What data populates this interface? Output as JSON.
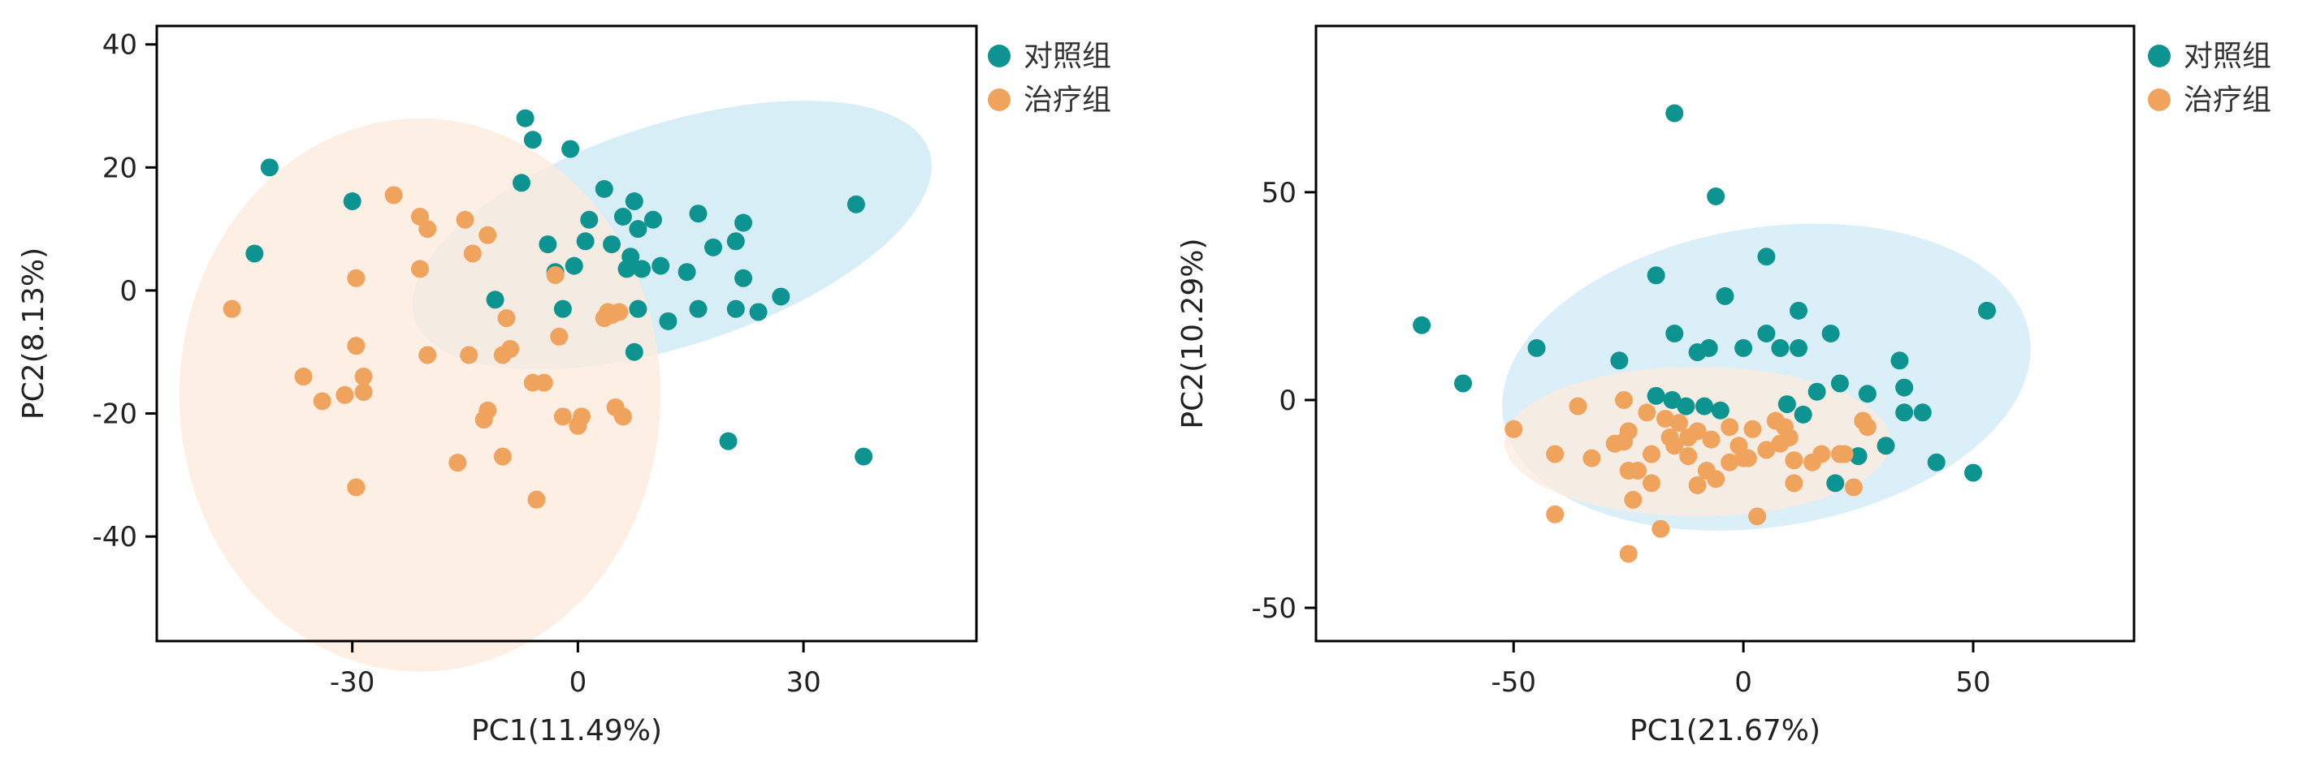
{
  "chart_data": [
    {
      "type": "scatter",
      "title": "",
      "xlabel": "PC1(11.49%)",
      "ylabel": "PC2(8.13%)",
      "xlim": [
        -56,
        53
      ],
      "ylim": [
        -57,
        43
      ],
      "xticks": [
        -30,
        0,
        30
      ],
      "xtick_labels": [
        "-30",
        "0",
        "30"
      ],
      "yticks": [
        40,
        20,
        0,
        -20,
        -40
      ],
      "ytick_labels": [
        "40",
        "20",
        "0",
        "-20",
        "-40"
      ],
      "grid": false,
      "legend_position": "top-right outside",
      "series": [
        {
          "name": "对照组",
          "color": "#0e9490",
          "ellipse": {
            "cx": 12.5,
            "cy": 9,
            "rx": 36,
            "ry": 18,
            "angle_deg": 18,
            "fill": "#cbe8f4"
          },
          "points": [
            [
              -7,
              28
            ],
            [
              -6,
              24.5
            ],
            [
              -41,
              20
            ],
            [
              -30,
              14.5
            ],
            [
              -43,
              6
            ],
            [
              -7.5,
              17.5
            ],
            [
              -1,
              23
            ],
            [
              3.5,
              16.5
            ],
            [
              7.5,
              14.5
            ],
            [
              6,
              12
            ],
            [
              1.5,
              11.5
            ],
            [
              10,
              11.5
            ],
            [
              16,
              12.5
            ],
            [
              22,
              11
            ],
            [
              8,
              10
            ],
            [
              1,
              8
            ],
            [
              -4,
              7.5
            ],
            [
              4.5,
              7.5
            ],
            [
              7,
              5.5
            ],
            [
              8.5,
              3.5
            ],
            [
              6.5,
              3.5
            ],
            [
              11,
              4
            ],
            [
              14.5,
              3
            ],
            [
              18,
              7
            ],
            [
              21,
              8
            ],
            [
              22,
              2
            ],
            [
              -3,
              3
            ],
            [
              -0.5,
              4
            ],
            [
              -11,
              -1.5
            ],
            [
              -2,
              -3
            ],
            [
              8,
              -3
            ],
            [
              16,
              -3
            ],
            [
              21,
              -3
            ],
            [
              24,
              -3.5
            ],
            [
              27,
              -1
            ],
            [
              12,
              -5
            ],
            [
              7.5,
              -10
            ],
            [
              20,
              -24.5
            ],
            [
              37,
              14
            ],
            [
              38,
              -27
            ]
          ]
        },
        {
          "name": "治疗组",
          "color": "#f0a35c",
          "ellipse": {
            "cx": -21,
            "cy": -17,
            "rx": 32,
            "ry": 45,
            "angle_deg": 0,
            "fill": "#fdeadc"
          },
          "points": [
            [
              -46,
              -3
            ],
            [
              -29.5,
              2
            ],
            [
              -24.5,
              15.5
            ],
            [
              -21,
              12
            ],
            [
              -20,
              10
            ],
            [
              -15,
              11.5
            ],
            [
              -12,
              9
            ],
            [
              -14,
              6
            ],
            [
              -21,
              3.5
            ],
            [
              -9,
              -9.5
            ],
            [
              -9.5,
              -4.5
            ],
            [
              -3,
              2.5
            ],
            [
              -2.5,
              -7.5
            ],
            [
              3.5,
              -4.5
            ],
            [
              4.5,
              -4
            ],
            [
              4,
              -3.5
            ],
            [
              5.5,
              -3.5
            ],
            [
              -29.5,
              -9
            ],
            [
              -36.5,
              -14
            ],
            [
              -28.5,
              -14
            ],
            [
              -28.5,
              -16.5
            ],
            [
              -31,
              -17
            ],
            [
              -34,
              -18
            ],
            [
              -20,
              -10.5
            ],
            [
              -14.5,
              -10.5
            ],
            [
              -10,
              -10.5
            ],
            [
              -6,
              -15
            ],
            [
              -4.5,
              -15
            ],
            [
              -12,
              -19.5
            ],
            [
              -12.5,
              -21
            ],
            [
              -2,
              -20.5
            ],
            [
              0,
              -22
            ],
            [
              0.5,
              -20.5
            ],
            [
              5,
              -19
            ],
            [
              6,
              -20.5
            ],
            [
              -16,
              -28
            ],
            [
              -10,
              -27
            ],
            [
              -29.5,
              -32
            ],
            [
              -5.5,
              -34
            ]
          ]
        }
      ]
    },
    {
      "type": "scatter",
      "title": "",
      "xlabel": "PC1(21.67%)",
      "ylabel": "PC2(10.29%)",
      "xlim": [
        -93,
        85
      ],
      "ylim": [
        -58,
        90
      ],
      "xticks": [
        -50,
        0,
        50
      ],
      "xtick_labels": [
        "-50",
        "0",
        "50"
      ],
      "yticks": [
        50,
        0,
        -50
      ],
      "ytick_labels": [
        "50",
        "0",
        "-50"
      ],
      "grid": false,
      "legend_position": "top-right outside",
      "series": [
        {
          "name": "对照组",
          "color": "#0e9490",
          "ellipse": {
            "cx": 5,
            "cy": 5.5,
            "rx": 58,
            "ry": 36,
            "angle_deg": 9,
            "fill": "#cfe9f5"
          },
          "points": [
            [
              -70,
              18
            ],
            [
              -61,
              4
            ],
            [
              -45,
              12.5
            ],
            [
              -15,
              69
            ],
            [
              -6,
              49
            ],
            [
              -19,
              30
            ],
            [
              -4,
              25
            ],
            [
              5,
              34.5
            ],
            [
              12,
              21.5
            ],
            [
              -15,
              16
            ],
            [
              -10,
              11.5
            ],
            [
              -7.5,
              12.5
            ],
            [
              0,
              12.5
            ],
            [
              5,
              16
            ],
            [
              8,
              12.5
            ],
            [
              12,
              12.5
            ],
            [
              19,
              16
            ],
            [
              -27,
              9.5
            ],
            [
              -15.5,
              0
            ],
            [
              -19,
              1
            ],
            [
              -12.5,
              -1.5
            ],
            [
              -8.5,
              -1.5
            ],
            [
              -5,
              -2.5
            ],
            [
              9.5,
              -1
            ],
            [
              13,
              -3.5
            ],
            [
              16,
              2
            ],
            [
              21,
              4
            ],
            [
              27,
              1.5
            ],
            [
              34,
              9.5
            ],
            [
              35,
              3
            ],
            [
              35,
              -3
            ],
            [
              39,
              -3
            ],
            [
              31,
              -11
            ],
            [
              25,
              -13.5
            ],
            [
              20,
              -20
            ],
            [
              42,
              -15
            ],
            [
              50,
              -17.5
            ],
            [
              53,
              21.5
            ]
          ]
        },
        {
          "name": "治疗组",
          "color": "#f0a35c",
          "ellipse": {
            "cx": -10,
            "cy": -10,
            "rx": 42,
            "ry": 18,
            "angle_deg": 0,
            "fill": "#fdebdd"
          },
          "points": [
            [
              -50,
              -7
            ],
            [
              -36,
              -1.5
            ],
            [
              -26,
              0
            ],
            [
              -21,
              -3
            ],
            [
              -17,
              -4.5
            ],
            [
              -14,
              -5.5
            ],
            [
              -10,
              -7.5
            ],
            [
              -3,
              -6.5
            ],
            [
              2,
              -7
            ],
            [
              7,
              -5
            ],
            [
              9,
              -6.5
            ],
            [
              10,
              -9
            ],
            [
              8,
              -10.5
            ],
            [
              5,
              -12
            ],
            [
              -1,
              -11
            ],
            [
              -7,
              -9.5
            ],
            [
              -12,
              -9
            ],
            [
              -16,
              -9
            ],
            [
              -15,
              -11
            ],
            [
              -25,
              -7.5
            ],
            [
              -26,
              -10
            ],
            [
              -28,
              -10.5
            ],
            [
              -41,
              -13
            ],
            [
              -33,
              -14
            ],
            [
              -25,
              -17
            ],
            [
              -23,
              -17
            ],
            [
              -20,
              -13
            ],
            [
              -12,
              -13.5
            ],
            [
              -8,
              -17
            ],
            [
              -6,
              -19
            ],
            [
              -3,
              -15
            ],
            [
              0,
              -14
            ],
            [
              1,
              -14
            ],
            [
              11,
              -14.5
            ],
            [
              15,
              -15
            ],
            [
              17,
              -13
            ],
            [
              21,
              -13
            ],
            [
              22,
              -13
            ],
            [
              24,
              -21
            ],
            [
              11,
              -20
            ],
            [
              26,
              -5
            ],
            [
              27,
              -6.5
            ],
            [
              -41,
              -27.5
            ],
            [
              -24,
              -24
            ],
            [
              -18,
              -31
            ],
            [
              -25,
              -37
            ],
            [
              3,
              -28
            ],
            [
              -10,
              -20.5
            ],
            [
              -20,
              -20
            ]
          ]
        }
      ]
    }
  ]
}
